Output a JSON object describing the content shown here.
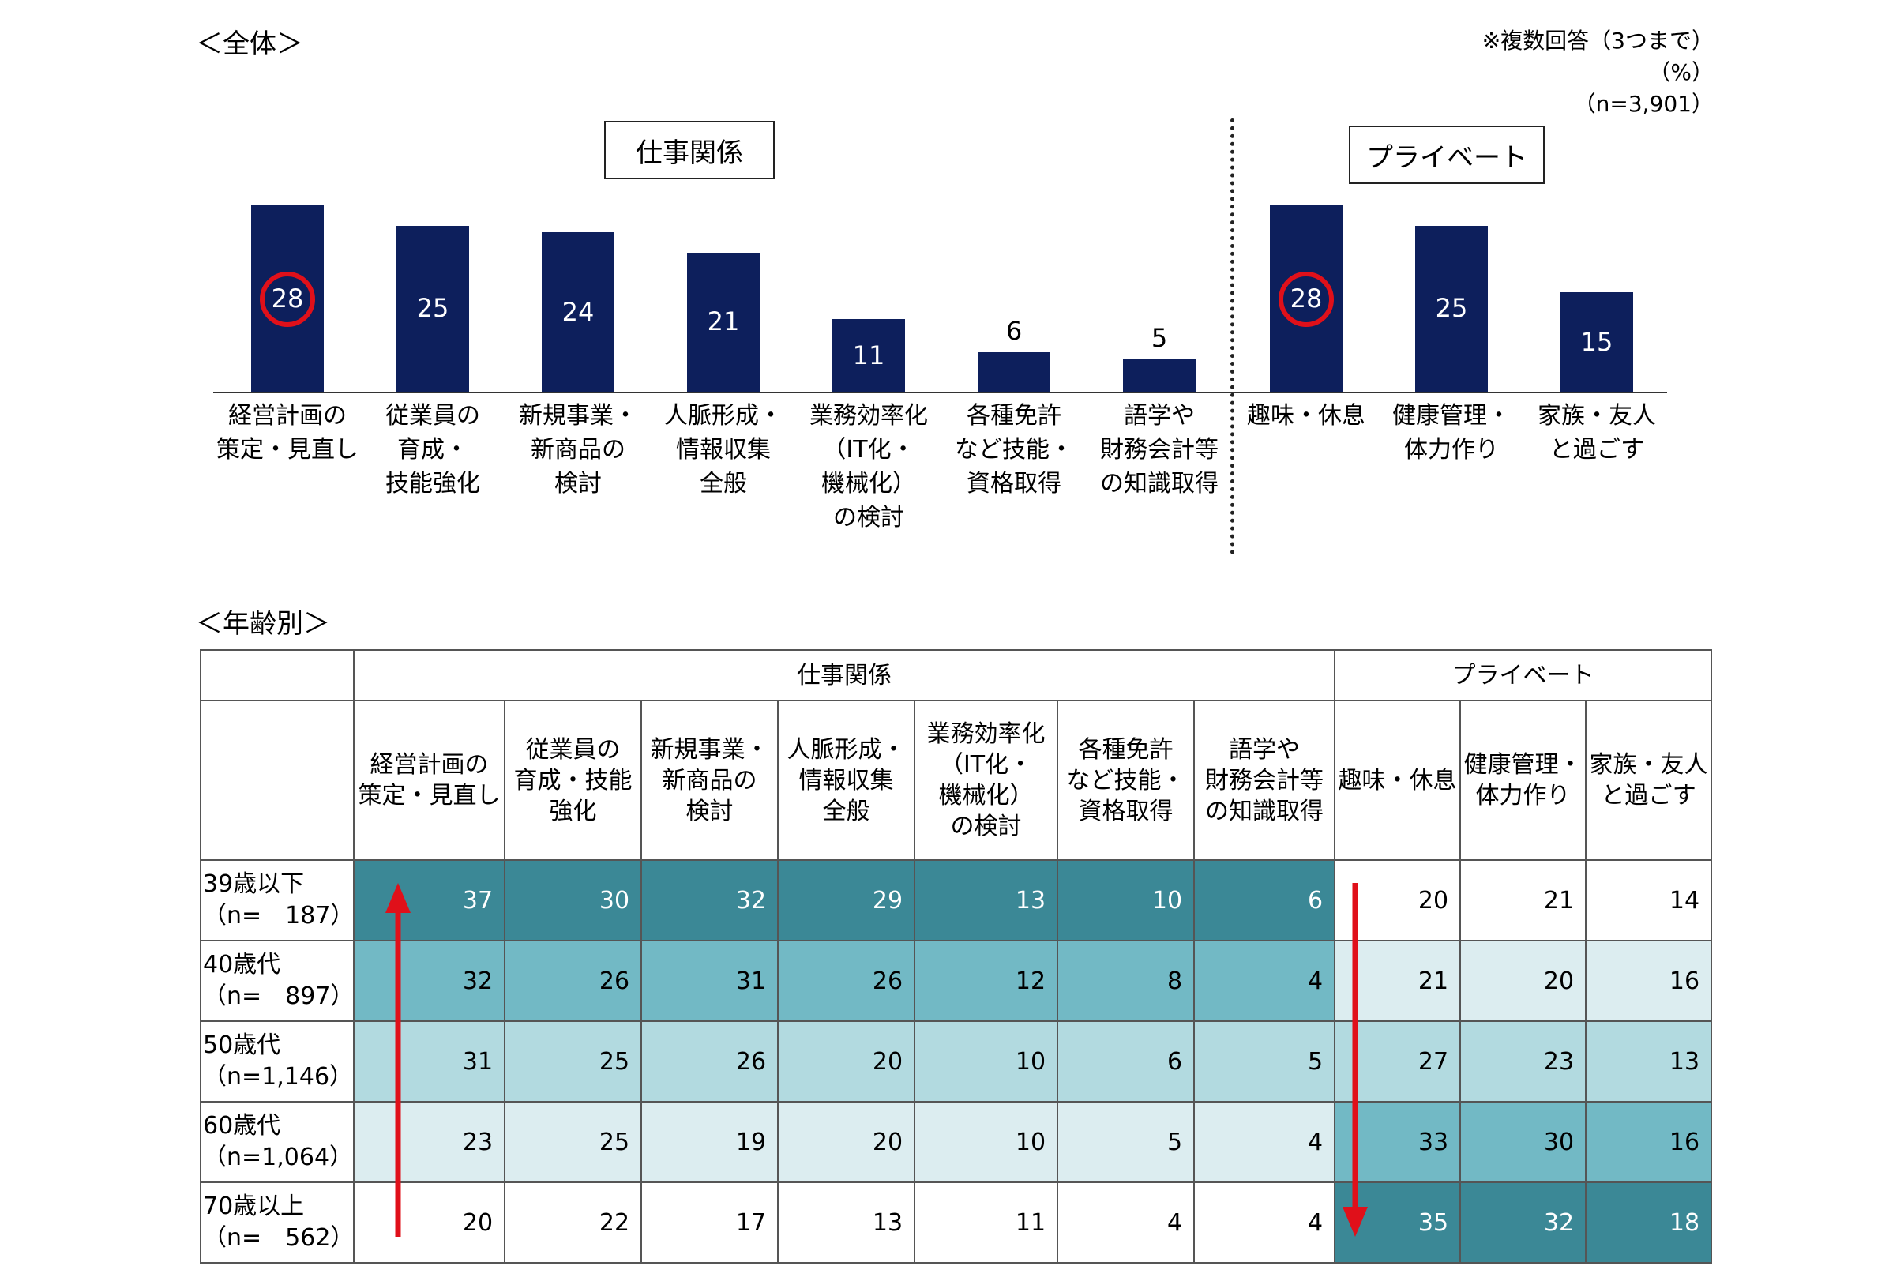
{
  "overall_label": "＜全体＞",
  "age_label": "＜年齢別＞",
  "note_lines": [
    "※複数回答（3つまで）",
    "（%）",
    "（n=3,901）"
  ],
  "group_work": "仕事関係",
  "group_private": "プライベート",
  "colors": {
    "bar": "#0d1f5c",
    "highlight_circle": "#e0101a",
    "arrow": "#e0101a",
    "shade_1": "#ffffff",
    "shade_2": "#dcedf0",
    "shade_3": "#b2dae0",
    "shade_4": "#72b9c5",
    "shade_5": "#3b8896"
  },
  "chart_data": {
    "type": "bar",
    "categories": [
      "経営計画の\n策定・見直し",
      "従業員の\n育成・\n技能強化",
      "新規事業・\n新商品の\n検討",
      "人脈形成・\n情報収集\n全般",
      "業務効率化\n（IT化・\n機械化）\nの検討",
      "各種免許\nなど技能・\n資格取得",
      "語学や\n財務会計等\nの知識取得",
      "趣味・休息",
      "健康管理・\n体力作り",
      "家族・友人\nと過ごす"
    ],
    "groups": [
      "仕事関係",
      "仕事関係",
      "仕事関係",
      "仕事関係",
      "仕事関係",
      "仕事関係",
      "仕事関係",
      "プライベート",
      "プライベート",
      "プライベート"
    ],
    "values": [
      28,
      25,
      24,
      21,
      11,
      6,
      5,
      28,
      25,
      15
    ],
    "highlighted": [
      0,
      7
    ],
    "ylim": [
      0,
      30
    ]
  },
  "table": {
    "group_headers": [
      "仕事関係",
      "プライベート"
    ],
    "columns": [
      "経営計画の\n策定・見直し",
      "従業員の\n育成・技能\n強化",
      "新規事業・\n新商品の\n検討",
      "人脈形成・\n情報収集\n全般",
      "業務効率化\n（IT化・\n機械化）\nの検討",
      "各種免許\nなど技能・\n資格取得",
      "語学や\n財務会計等\nの知識取得",
      "趣味・休息",
      "健康管理・\n体力作り",
      "家族・友人\nと過ごす"
    ],
    "rows": [
      {
        "label": "39歳以下\n（n=　187）",
        "values": [
          37,
          30,
          32,
          29,
          13,
          10,
          6,
          20,
          21,
          14
        ],
        "shades": [
          5,
          5,
          5,
          5,
          5,
          5,
          5,
          1,
          1,
          1
        ]
      },
      {
        "label": "40歳代\n（n=　897）",
        "values": [
          32,
          26,
          31,
          26,
          12,
          8,
          4,
          21,
          20,
          16
        ],
        "shades": [
          4,
          4,
          4,
          4,
          4,
          4,
          4,
          2,
          2,
          2
        ]
      },
      {
        "label": "50歳代\n（n=1,146）",
        "values": [
          31,
          25,
          26,
          20,
          10,
          6,
          5,
          27,
          23,
          13
        ],
        "shades": [
          3,
          3,
          3,
          3,
          3,
          3,
          3,
          3,
          3,
          3
        ]
      },
      {
        "label": "60歳代\n（n=1,064）",
        "values": [
          23,
          25,
          19,
          20,
          10,
          5,
          4,
          33,
          30,
          16
        ],
        "shades": [
          2,
          2,
          2,
          2,
          2,
          2,
          2,
          4,
          4,
          4
        ]
      },
      {
        "label": "70歳以上\n（n=　562）",
        "values": [
          20,
          22,
          17,
          13,
          11,
          4,
          4,
          35,
          32,
          18
        ],
        "shades": [
          1,
          1,
          1,
          1,
          1,
          1,
          1,
          5,
          5,
          5
        ]
      }
    ]
  }
}
